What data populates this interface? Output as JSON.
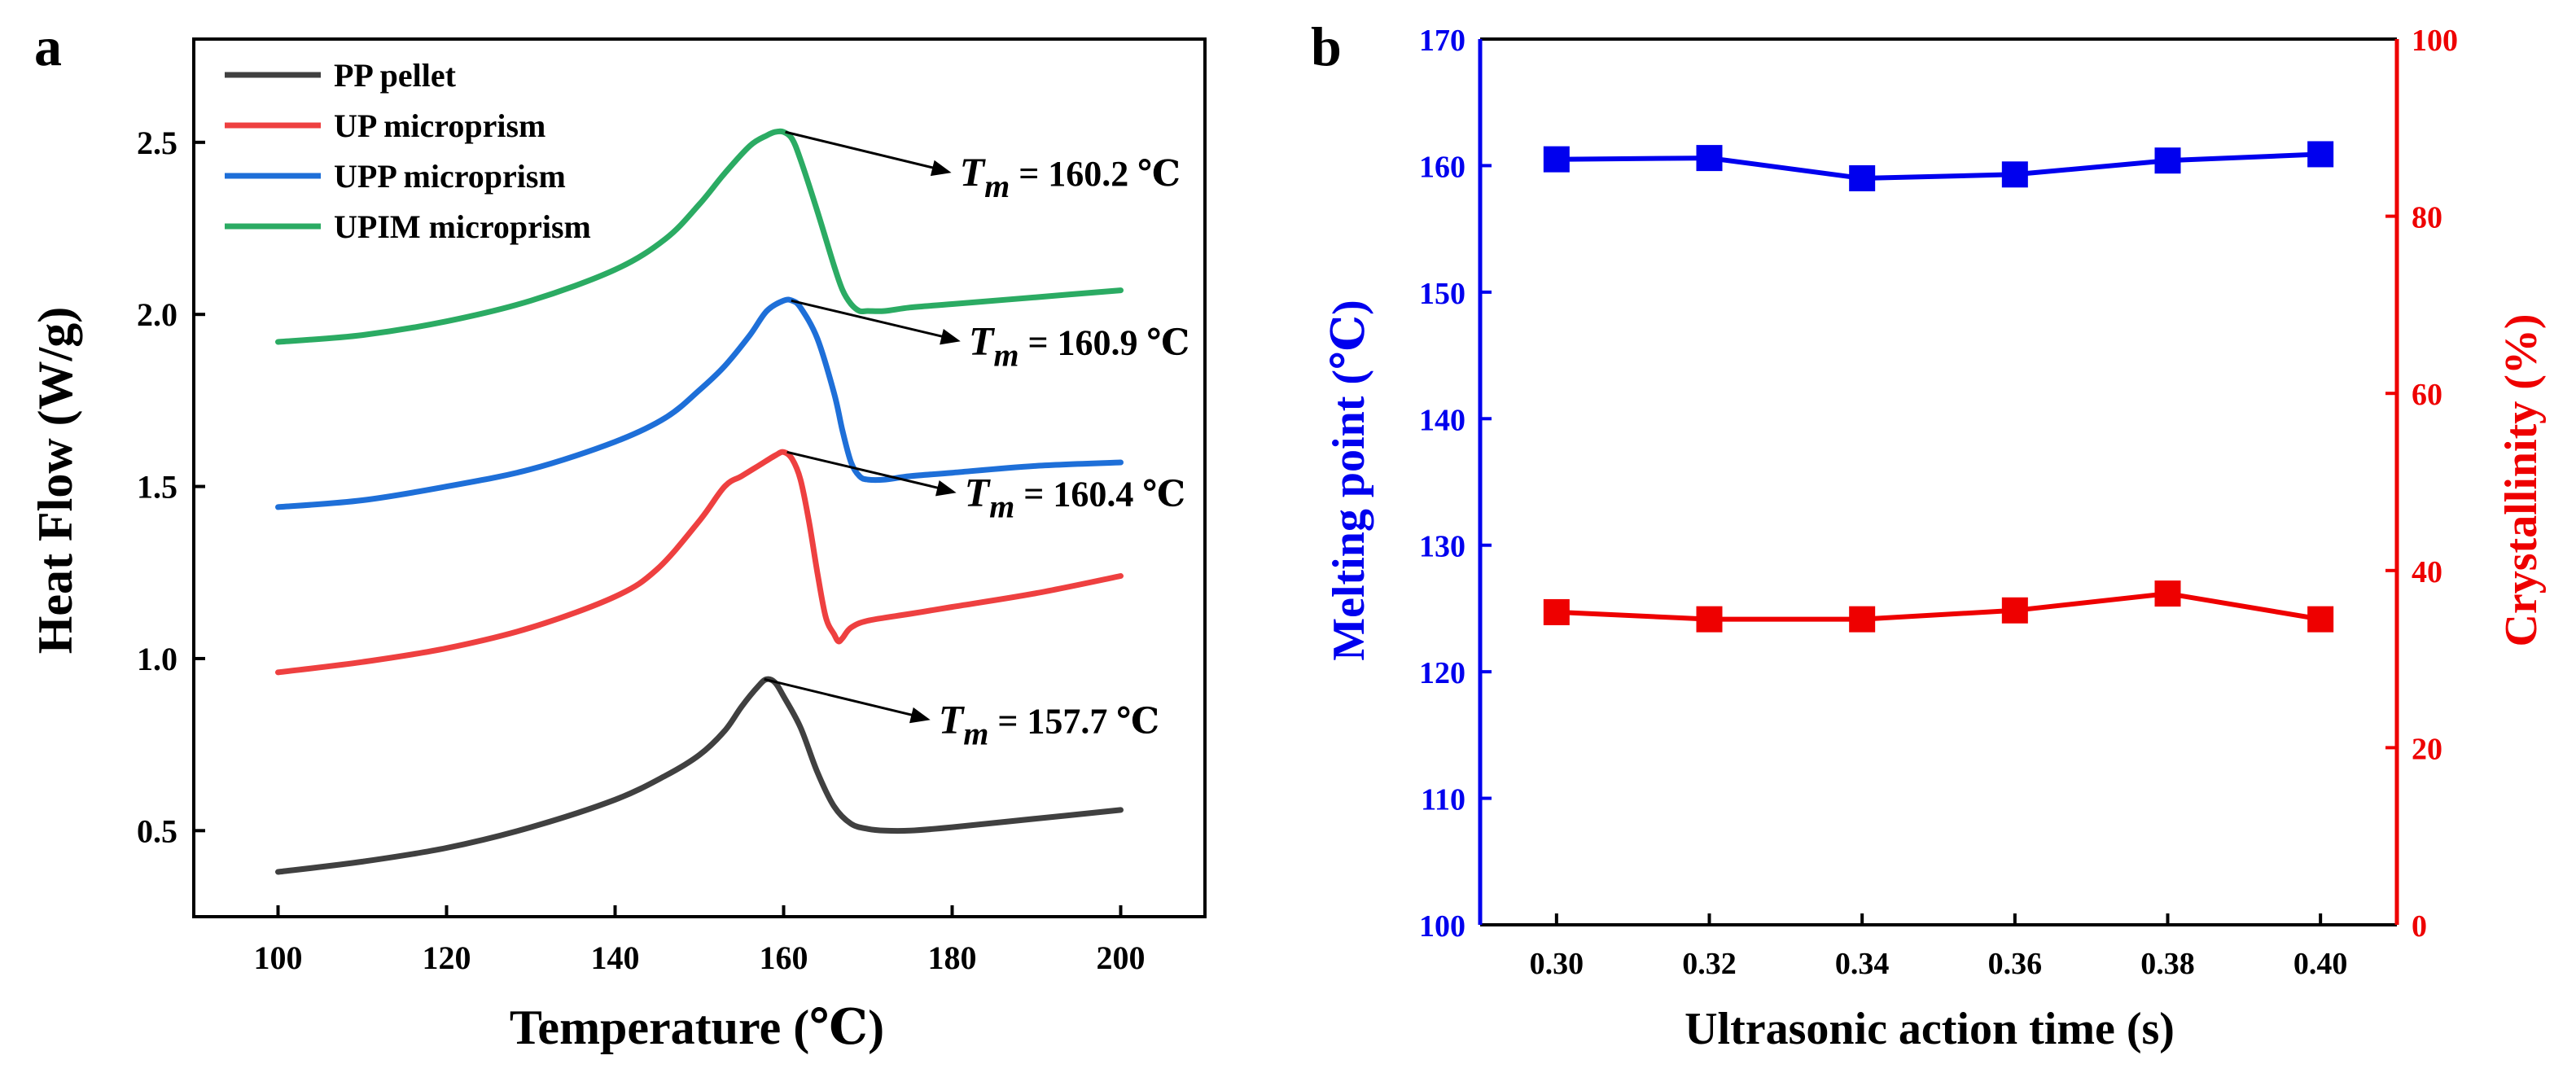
{
  "panels": {
    "a": {
      "label": "a"
    },
    "b": {
      "label": "b"
    }
  },
  "chart_data": [
    {
      "type": "line",
      "panel": "a",
      "xlabel": "Temperature (℃)",
      "ylabel": "Heat Flow (W/g)",
      "xlim": [
        90,
        210
      ],
      "ylim": [
        0.25,
        2.8
      ],
      "xticks": [
        100,
        120,
        140,
        160,
        180,
        200
      ],
      "yticks": [
        0.5,
        1.0,
        1.5,
        2.0,
        2.5
      ],
      "legend_position": "top-left",
      "series": [
        {
          "name": "PP pellet",
          "color": "#404040",
          "x": [
            100,
            110,
            120,
            130,
            140,
            146,
            150,
            153,
            155,
            157,
            158,
            159,
            160,
            162,
            164,
            166,
            168,
            170,
            172,
            175,
            180,
            190,
            200
          ],
          "y": [
            0.38,
            0.41,
            0.45,
            0.51,
            0.59,
            0.66,
            0.72,
            0.79,
            0.86,
            0.92,
            0.94,
            0.93,
            0.89,
            0.8,
            0.67,
            0.57,
            0.52,
            0.505,
            0.5,
            0.5,
            0.51,
            0.535,
            0.56
          ],
          "annotation": {
            "peak_x": 157.7,
            "peak_y": 0.94,
            "sub": "m",
            "value": "= 157.7 ℃"
          }
        },
        {
          "name": "UP microprism",
          "color": "#ee4040",
          "x": [
            100,
            110,
            120,
            130,
            140,
            145,
            150,
            153,
            155,
            157,
            159,
            160,
            161,
            162,
            163,
            164,
            165,
            166,
            166.5,
            167,
            168,
            170,
            175,
            180,
            190,
            200
          ],
          "y": [
            0.96,
            0.99,
            1.03,
            1.09,
            1.18,
            1.26,
            1.4,
            1.5,
            1.53,
            1.56,
            1.59,
            1.6,
            1.58,
            1.52,
            1.4,
            1.25,
            1.12,
            1.07,
            1.05,
            1.06,
            1.09,
            1.11,
            1.13,
            1.15,
            1.19,
            1.24
          ],
          "annotation": {
            "peak_x": 160.4,
            "peak_y": 1.6,
            "sub": "m",
            "value": "= 160.4 ℃"
          }
        },
        {
          "name": "UPP microprism",
          "color": "#1e6fd8",
          "x": [
            100,
            110,
            120,
            130,
            140,
            146,
            150,
            153,
            156,
            158,
            160,
            161,
            162,
            164,
            166,
            167,
            168,
            169,
            170,
            172,
            175,
            180,
            190,
            200
          ],
          "y": [
            1.44,
            1.46,
            1.5,
            1.55,
            1.63,
            1.7,
            1.78,
            1.85,
            1.94,
            2.01,
            2.04,
            2.04,
            2.02,
            1.93,
            1.77,
            1.66,
            1.57,
            1.53,
            1.52,
            1.52,
            1.53,
            1.54,
            1.56,
            1.57
          ],
          "annotation": {
            "peak_x": 160.9,
            "peak_y": 2.04,
            "sub": "m",
            "value": "= 160.9 ℃"
          }
        },
        {
          "name": "UPIM microprism",
          "color": "#2bab63",
          "x": [
            100,
            110,
            120,
            130,
            140,
            146,
            150,
            153,
            156,
            158,
            159,
            160,
            161,
            162,
            164,
            166,
            167,
            168,
            169,
            170,
            172,
            175,
            180,
            190,
            200
          ],
          "y": [
            1.92,
            1.94,
            1.98,
            2.04,
            2.13,
            2.22,
            2.32,
            2.41,
            2.49,
            2.52,
            2.53,
            2.53,
            2.51,
            2.45,
            2.3,
            2.14,
            2.07,
            2.03,
            2.01,
            2.01,
            2.01,
            2.02,
            2.03,
            2.05,
            2.07
          ],
          "annotation": {
            "peak_x": 160.2,
            "peak_y": 2.53,
            "sub": "m",
            "value": "= 160.2 ℃"
          }
        }
      ]
    },
    {
      "type": "line",
      "panel": "b",
      "xlabel": "Ultrasonic action time (s)",
      "ylabel_left": "Melting point  (℃)",
      "ylabel_right": "Crystallinity (%)",
      "xlim": [
        0.29,
        0.41
      ],
      "ylim_left": [
        100,
        170
      ],
      "ylim_right": [
        0,
        100
      ],
      "xticks": [
        "0.30",
        "0.32",
        "0.34",
        "0.36",
        "0.38",
        "0.40"
      ],
      "yticks_left": [
        100,
        110,
        120,
        130,
        140,
        150,
        160,
        170
      ],
      "yticks_right": [
        0,
        20,
        40,
        60,
        80,
        100
      ],
      "left_color": "#0000ee",
      "right_color": "#ee0000",
      "series": [
        {
          "name": "Melting point",
          "axis": "left",
          "color": "#0000ee",
          "x": [
            0.3,
            0.32,
            0.34,
            0.36,
            0.38,
            0.4
          ],
          "y": [
            160.5,
            160.6,
            159.0,
            159.3,
            160.4,
            160.9
          ]
        },
        {
          "name": "Crystallinity",
          "axis": "right",
          "color": "#ee0000",
          "x": [
            0.3,
            0.32,
            0.34,
            0.36,
            0.38,
            0.4
          ],
          "y": [
            35.3,
            34.5,
            34.5,
            35.5,
            37.4,
            34.5
          ]
        }
      ]
    }
  ]
}
